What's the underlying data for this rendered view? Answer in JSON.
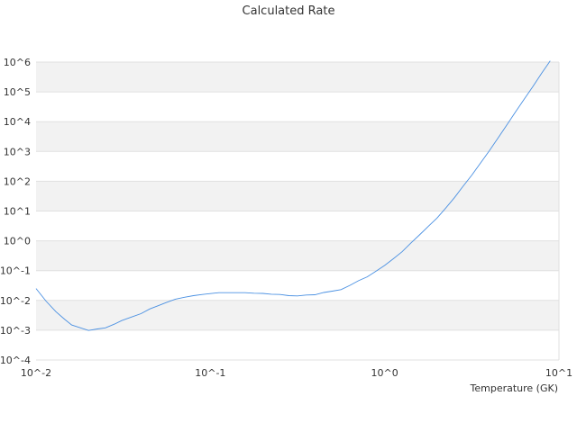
{
  "chart_data": {
    "type": "line",
    "title": "Calculated Rate",
    "xlabel": "Temperature (GK)",
    "ylabel": "",
    "x_scale": "log",
    "y_scale": "log",
    "xlim": [
      0.01,
      10
    ],
    "ylim": [
      0.0001,
      1000000
    ],
    "grid": "horizontal alternating bands",
    "x_ticks": [
      "10^-2",
      "10^-1",
      "10^0",
      "10^1"
    ],
    "y_ticks": [
      "10^-4",
      "10^-3",
      "10^-2",
      "10^-1",
      "10^0",
      "10^1",
      "10^2",
      "10^3",
      "10^4",
      "10^5",
      "10^6"
    ],
    "series": [
      {
        "color": "#4a90e2",
        "x": [
          0.01,
          0.0114,
          0.013,
          0.0146,
          0.016,
          0.018,
          0.02,
          0.0225,
          0.025,
          0.0282,
          0.031,
          0.0355,
          0.04,
          0.045,
          0.05,
          0.056,
          0.063,
          0.071,
          0.08,
          0.09,
          0.1,
          0.112,
          0.126,
          0.141,
          0.158,
          0.178,
          0.2,
          0.224,
          0.251,
          0.282,
          0.316,
          0.355,
          0.398,
          0.447,
          0.5,
          0.562,
          0.631,
          0.708,
          0.794,
          0.891,
          1.0,
          1.122,
          1.259,
          1.413,
          1.585,
          1.778,
          1.995,
          2.239,
          2.512,
          2.818,
          3.162,
          3.548,
          3.981,
          4.467,
          5.012,
          5.623,
          6.31,
          7.079,
          7.943,
          8.913
        ],
        "y": [
          0.025,
          0.0095,
          0.0042,
          0.0023,
          0.0015,
          0.0012,
          0.00098,
          0.0011,
          0.0012,
          0.0016,
          0.0021,
          0.0028,
          0.0036,
          0.0052,
          0.0066,
          0.0085,
          0.011,
          0.0128,
          0.0145,
          0.0158,
          0.017,
          0.0182,
          0.0182,
          0.0182,
          0.0182,
          0.0175,
          0.0172,
          0.0162,
          0.0158,
          0.0145,
          0.0142,
          0.0152,
          0.0155,
          0.0185,
          0.0205,
          0.023,
          0.032,
          0.046,
          0.062,
          0.095,
          0.15,
          0.25,
          0.43,
          0.84,
          1.58,
          3.05,
          5.8,
          12.5,
          28,
          68,
          160,
          410,
          1050,
          2800,
          7600,
          21000,
          56000,
          150000,
          420000,
          1100000
        ]
      }
    ]
  }
}
